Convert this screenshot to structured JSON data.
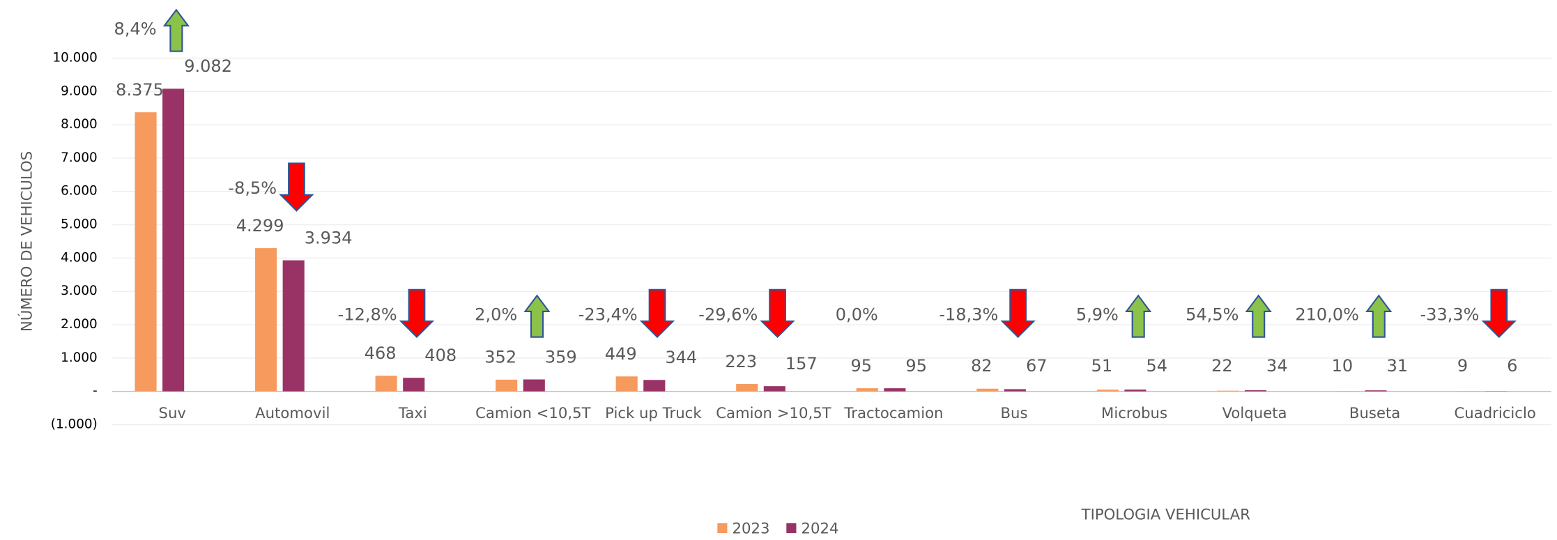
{
  "chart_data": {
    "type": "bar",
    "x_label": "TIPOLOGIA VEHICULAR",
    "y_label": "NÚMERO DE VEHICULOS",
    "categories": [
      "Suv",
      "Automovil",
      "Taxi",
      "Camion <10,5T",
      "Pick up Truck",
      "Camion >10,5T",
      "Tractocamion",
      "Bus",
      "Microbus",
      "Volqueta",
      "Buseta",
      "Cuadriciclo"
    ],
    "series": [
      {
        "name": "2023",
        "color": "#f79a5e",
        "values": [
          8375,
          4299,
          468,
          352,
          449,
          223,
          95,
          82,
          51,
          22,
          10,
          9
        ],
        "value_labels": [
          "8.375",
          "4.299",
          "468",
          "352",
          "449",
          "223",
          "95",
          "82",
          "51",
          "22",
          "10",
          "9"
        ]
      },
      {
        "name": "2024",
        "color": "#993366",
        "values": [
          9082,
          3934,
          408,
          359,
          344,
          157,
          95,
          67,
          54,
          34,
          31,
          6
        ],
        "value_labels": [
          "9.082",
          "3.934",
          "408",
          "359",
          "344",
          "157",
          "95",
          "67",
          "54",
          "34",
          "31",
          "6"
        ]
      }
    ],
    "changes": [
      {
        "value": 8.4,
        "label": "8,4%"
      },
      {
        "value": -8.5,
        "label": "-8,5%"
      },
      {
        "value": -12.8,
        "label": "-12,8%"
      },
      {
        "value": 2.0,
        "label": "2,0%"
      },
      {
        "value": -23.4,
        "label": "-23,4%"
      },
      {
        "value": -29.6,
        "label": "-29,6%"
      },
      {
        "value": 0.0,
        "label": "0,0%"
      },
      {
        "value": -18.3,
        "label": "-18,3%"
      },
      {
        "value": 5.9,
        "label": "5,9%"
      },
      {
        "value": 54.5,
        "label": "54,5%"
      },
      {
        "value": 210.0,
        "label": "210,0%"
      },
      {
        "value": -33.3,
        "label": "-33,3%"
      }
    ],
    "ylim": [
      -1000,
      10000
    ],
    "yticks": [
      {
        "value": -1000,
        "label": "(1.000)"
      },
      {
        "value": 0,
        "label": "-"
      },
      {
        "value": 1000,
        "label": "1.000"
      },
      {
        "value": 2000,
        "label": "2.000"
      },
      {
        "value": 3000,
        "label": "3.000"
      },
      {
        "value": 4000,
        "label": "4.000"
      },
      {
        "value": 5000,
        "label": "5.000"
      },
      {
        "value": 6000,
        "label": "6.000"
      },
      {
        "value": 7000,
        "label": "7.000"
      },
      {
        "value": 8000,
        "label": "8.000"
      },
      {
        "value": 9000,
        "label": "9.000"
      },
      {
        "value": 10000,
        "label": "10.000"
      }
    ],
    "grid": true,
    "legend": "bottom"
  }
}
